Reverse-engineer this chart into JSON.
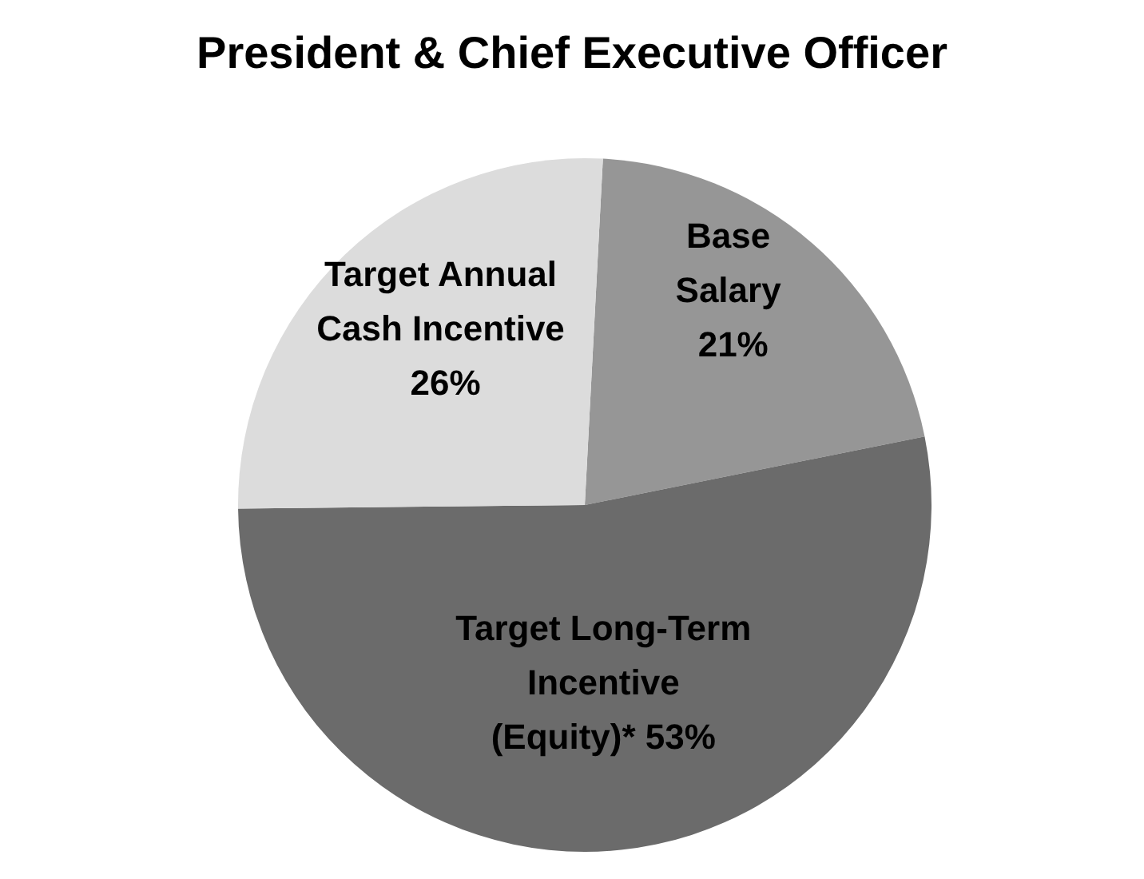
{
  "chart_data": {
    "type": "pie",
    "title": "President & Chief Executive Officer",
    "categories": [
      "Base Salary",
      "Target Long-Term Incentive (Equity)*",
      "Target Annual Cash Incentive"
    ],
    "values": [
      21,
      53,
      26
    ],
    "colors": [
      "#969696",
      "#6b6b6b",
      "#dcdcdc"
    ],
    "value_labels": [
      "21%",
      "53%",
      "26%"
    ]
  }
}
